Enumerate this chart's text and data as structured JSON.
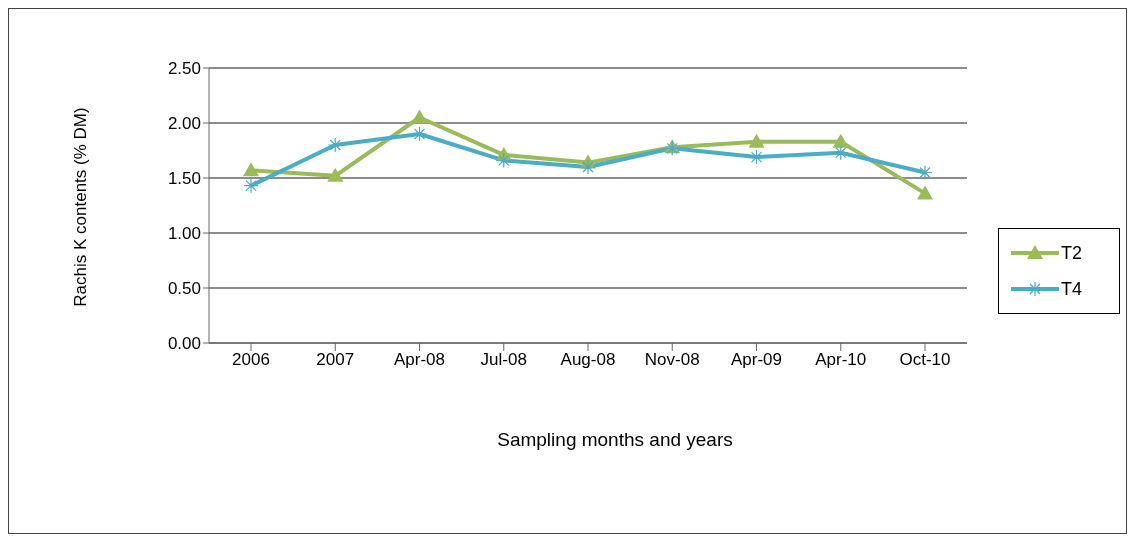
{
  "chart_data": {
    "type": "line",
    "ylabel": "Rachis K contents (% DM)",
    "xlabel": "Sampling months and years",
    "categories": [
      "2006",
      "2007",
      "Apr-08",
      "Jul-08",
      "Aug-08",
      "Nov-08",
      "Apr-09",
      "Apr-10",
      "Oct-10"
    ],
    "series": [
      {
        "name": "T2",
        "color": "#9bbb59",
        "marker": "triangle",
        "values": [
          1.57,
          1.52,
          2.05,
          1.71,
          1.64,
          1.78,
          1.83,
          1.83,
          1.36
        ]
      },
      {
        "name": "T4",
        "color": "#4bacc6",
        "marker": "cross",
        "values": [
          1.43,
          1.8,
          1.9,
          1.66,
          1.6,
          1.77,
          1.69,
          1.73,
          1.55
        ]
      }
    ],
    "ylim": [
      0,
      2.5
    ],
    "yticks": [
      {
        "value": 0,
        "label": "0.00"
      },
      {
        "value": 0.5,
        "label": "0.50"
      },
      {
        "value": 1,
        "label": "1.00"
      },
      {
        "value": 1.5,
        "label": "1.50"
      },
      {
        "value": 2,
        "label": "2.00"
      },
      {
        "value": 2.5,
        "label": "2.50"
      }
    ],
    "grid": "y",
    "legend": "right",
    "line_style": "solid"
  }
}
